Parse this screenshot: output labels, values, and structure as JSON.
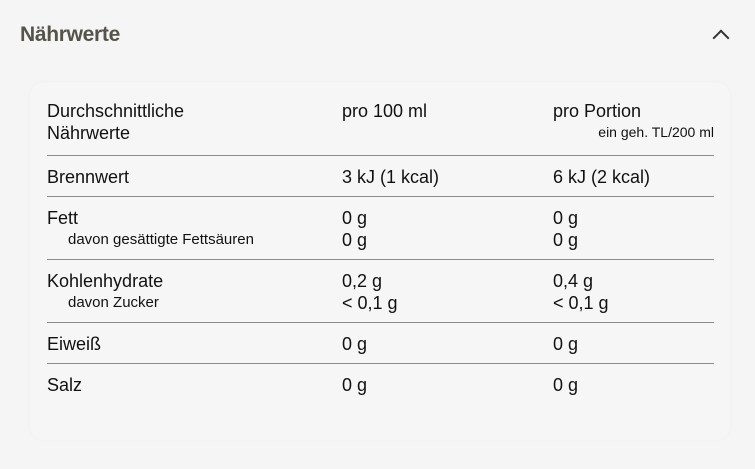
{
  "section": {
    "title": "Nährwerte",
    "toggle_icon": "chevron-up-icon"
  },
  "table": {
    "header": {
      "label_line1": "Durchschnittliche",
      "label_line2": "Nährwerte",
      "col1": "pro 100 ml",
      "col2": "pro Portion",
      "col2_note": "ein geh. TL/200 ml"
    },
    "rows": [
      {
        "label": "Brennwert",
        "v1": "3 kJ (1 kcal)",
        "v2": "6 kJ (2 kcal)"
      },
      {
        "label": "Fett",
        "v1": "0 g",
        "v2": "0 g",
        "sub": {
          "label": "davon gesättigte Fettsäuren",
          "v1": "0 g",
          "v2": "0 g"
        }
      },
      {
        "label": "Kohlenhydrate",
        "v1": "0,2 g",
        "v2": "0,4 g",
        "sub": {
          "label": "davon Zucker",
          "v1": "< 0,1 g",
          "v2": "< 0,1 g"
        }
      },
      {
        "label": "Eiweiß",
        "v1": "0 g",
        "v2": "0 g"
      },
      {
        "label": "Salz",
        "v1": "0 g",
        "v2": "0 g"
      }
    ]
  }
}
